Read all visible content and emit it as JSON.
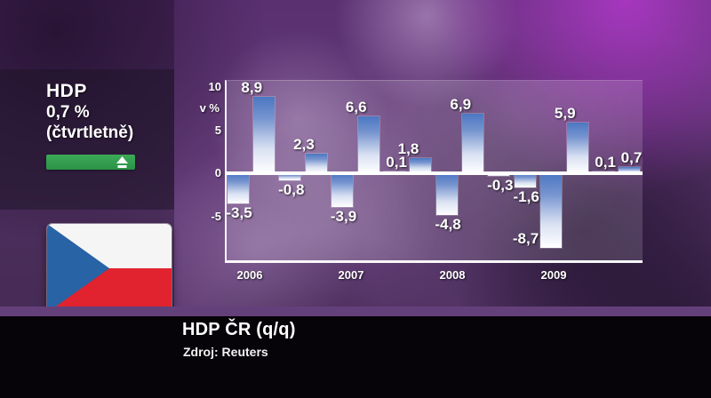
{
  "panel": {
    "title": "HDP",
    "value": "0,7 %",
    "period": "(čtvrtletně)",
    "trend": "up",
    "trend_color": "#31a14e"
  },
  "flag": {
    "name": "czech-republic",
    "colors": {
      "white": "#f5f5f5",
      "red": "#e0232e",
      "blue": "#2763a5"
    }
  },
  "chart_data": {
    "type": "bar",
    "title": "HDP ČR (q/q)",
    "unit_label": "v %",
    "categories": [
      "2006",
      "2007",
      "2008",
      "2009"
    ],
    "values": [
      -3.5,
      8.9,
      -0.8,
      2.3,
      -3.9,
      6.6,
      0.1,
      1.8,
      -4.8,
      6.9,
      -0.3,
      -1.6,
      -8.7,
      5.9,
      0.1,
      0.7
    ],
    "value_labels": [
      "-3,5",
      "8,9",
      "-0,8",
      "2,3",
      "-3,9",
      "6,6",
      "0,1",
      "1,8",
      "-4,8",
      "6,9",
      "-0,3",
      "-1,6",
      "-8,7",
      "5,9",
      "0,1",
      "0,7"
    ],
    "y_ticks": [
      10,
      5,
      0,
      -5
    ],
    "ylim": [
      -10.8,
      10.8
    ],
    "grid": false,
    "legend": "none",
    "bar_color_top": "#4b77c2",
    "bar_color_bottom": "#ffffff"
  },
  "footer": {
    "title": "HDP ČR (q/q)",
    "source": "Zdroj: Reuters"
  }
}
